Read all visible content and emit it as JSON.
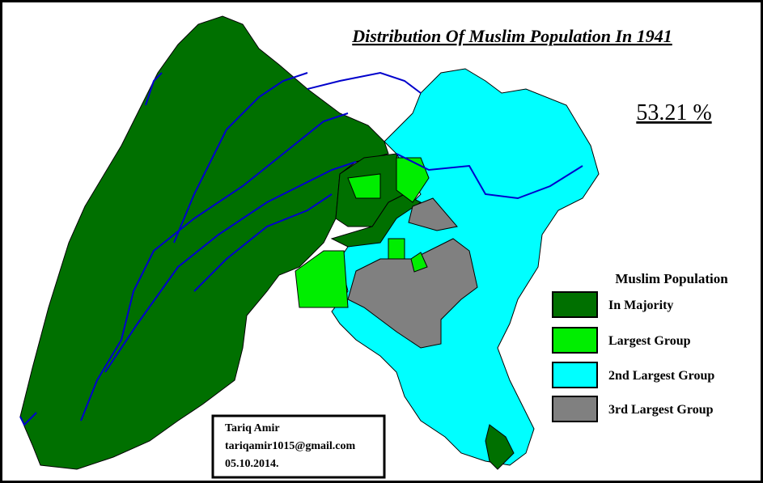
{
  "header": {
    "title": "Distribution Of Muslim Population In 1941",
    "percentage": "53.21 %"
  },
  "legend": {
    "title": "Muslim Population",
    "items": [
      {
        "label": "In Majority",
        "color": "#007000"
      },
      {
        "label": "Largest Group",
        "color": "#00ee00"
      },
      {
        "label": "2nd Largest Group",
        "color": "#00ffff"
      },
      {
        "label": "3rd Largest Group",
        "color": "#808080"
      }
    ]
  },
  "credit": {
    "lines": [
      "Tariq Amir",
      "tariqamir1015@gmail.com",
      "05.10.2014."
    ]
  }
}
